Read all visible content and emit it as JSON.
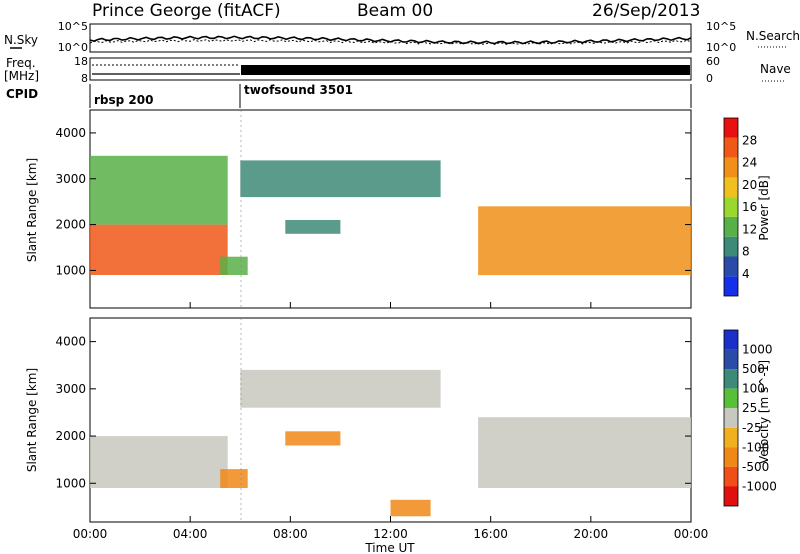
{
  "header": {
    "station": "Prince George (fitACF)",
    "beam": "Beam 00",
    "date": "26/Sep/2013"
  },
  "strip_panels": {
    "nsky_label": "N.Sky",
    "nsky_ticks": [
      "10^5",
      "10^0"
    ],
    "nsearch_label": "N.Search",
    "nsearch_ticks": [
      "10^5",
      "10^0"
    ],
    "freq_label_1": "Freq.",
    "freq_label_2": "[MHz]",
    "freq_ticks": [
      "18",
      "8"
    ],
    "nave_label": "Nave",
    "nave_ticks": [
      "60",
      "0"
    ],
    "cpid_label": "CPID",
    "cpid_segments": [
      {
        "name": "rbsp 200",
        "start_hour": 0,
        "end_hour": 6
      },
      {
        "name": "twofsound 3501",
        "start_hour": 6,
        "end_hour": 24
      }
    ]
  },
  "chart_data": [
    {
      "type": "heatmap",
      "title": "",
      "quantity": "Power",
      "colorbar_label": "Power [dB]",
      "colorbar_ticks": [
        "4",
        "8",
        "12",
        "16",
        "20",
        "24",
        "28"
      ],
      "colorbar_colors": [
        "#1530e8",
        "#2a4ca8",
        "#3e8a78",
        "#58b048",
        "#9ad830",
        "#f0c020",
        "#f09018",
        "#f05818",
        "#e81010"
      ],
      "ylabel": "Slant Range [km]",
      "yticks": [
        1000,
        2000,
        3000,
        4000
      ],
      "ylim": [
        180,
        4500
      ],
      "xlim": [
        0,
        24
      ],
      "xunit": "hours UT",
      "regions": [
        {
          "feature": "near-range E/F band",
          "x": [
            0,
            5.5
          ],
          "y": [
            900,
            2000
          ],
          "power_db": 26
        },
        {
          "feature": "upper diffuse band",
          "x": [
            0,
            5.5
          ],
          "y": [
            2000,
            3500
          ],
          "power_db": 14
        },
        {
          "feature": "daytime arch",
          "x": [
            6,
            14
          ],
          "y": [
            2600,
            3400
          ],
          "power_db": 10
        },
        {
          "feature": "daytime patch",
          "x": [
            7.8,
            10
          ],
          "y": [
            1800,
            2100
          ],
          "power_db": 10
        },
        {
          "feature": "near-range patch",
          "x": [
            5.2,
            6.3
          ],
          "y": [
            900,
            1300
          ],
          "power_db": 14
        },
        {
          "feature": "night band",
          "x": [
            15.5,
            24
          ],
          "y": [
            900,
            2400
          ],
          "power_db": 22
        }
      ]
    },
    {
      "type": "heatmap",
      "title": "",
      "quantity": "Velocity",
      "colorbar_label": "Velocity [m s^-1]",
      "colorbar_ticks": [
        "1000",
        "500",
        "100",
        "25",
        "-25",
        "-100",
        "-500",
        "-1000"
      ],
      "colorbar_colors": [
        "#1a30c8",
        "#2a4ca8",
        "#3e8a78",
        "#58c038",
        "#c8c8c0",
        "#f0b020",
        "#f08818",
        "#f05018",
        "#e01010"
      ],
      "ylabel": "Slant Range [km]",
      "yticks": [
        1000,
        2000,
        3000,
        4000
      ],
      "ylim": [
        180,
        4500
      ],
      "xlim": [
        0,
        24
      ],
      "xticks": [
        "00:00",
        "04:00",
        "08:00",
        "12:00",
        "16:00",
        "20:00",
        "00:00"
      ],
      "xlabel": "Time UT",
      "regions": [
        {
          "feature": "near-range ground scatter",
          "x": [
            0,
            5.5
          ],
          "y": [
            900,
            2000
          ],
          "velocity": 0
        },
        {
          "feature": "daytime arch ground scatter",
          "x": [
            6,
            14
          ],
          "y": [
            2600,
            3400
          ],
          "velocity": 0
        },
        {
          "feature": "daytime patch",
          "x": [
            7.8,
            10
          ],
          "y": [
            1800,
            2100
          ],
          "velocity": -300
        },
        {
          "feature": "near-range patch",
          "x": [
            5.2,
            6.3
          ],
          "y": [
            900,
            1300
          ],
          "velocity": -100
        },
        {
          "feature": "night band ground scatter",
          "x": [
            15.5,
            24
          ],
          "y": [
            900,
            2400
          ],
          "velocity": 0
        },
        {
          "feature": "low-range echoes",
          "x": [
            12,
            13.6
          ],
          "y": [
            300,
            650
          ],
          "velocity": -300
        }
      ]
    }
  ]
}
